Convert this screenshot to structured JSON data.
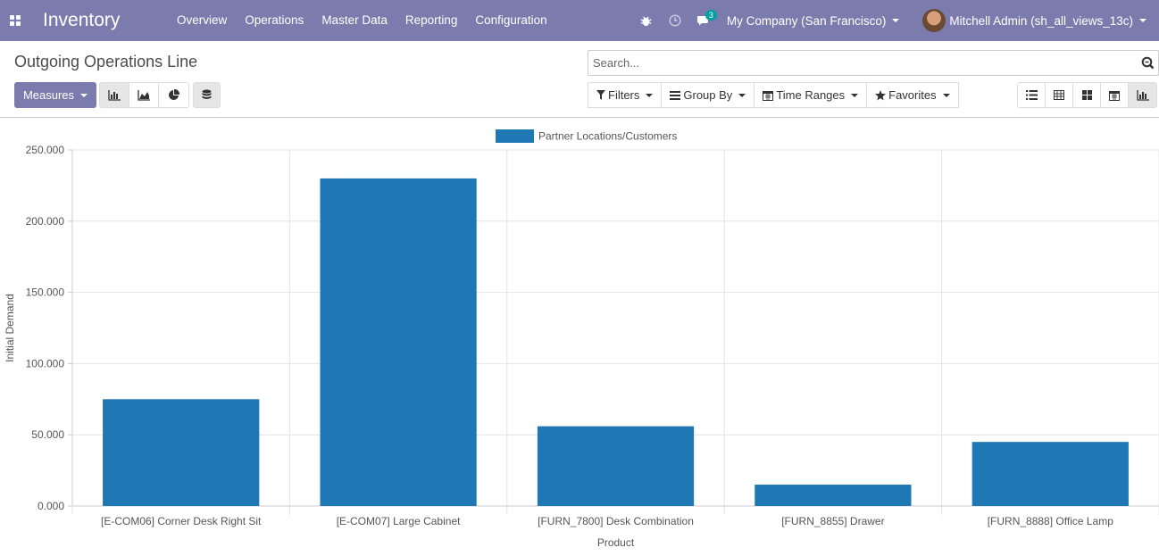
{
  "navbar": {
    "app_title": "Inventory",
    "menu": [
      "Overview",
      "Operations",
      "Master Data",
      "Reporting",
      "Configuration"
    ],
    "messages_badge": "3",
    "company": "My Company (San Francisco)",
    "user": "Mitchell Admin (sh_all_views_13c)"
  },
  "control_panel": {
    "title": "Outgoing Operations Line",
    "search_placeholder": "Search...",
    "measures_label": "Measures",
    "filters_label": "Filters",
    "group_by_label": "Group By",
    "time_ranges_label": "Time Ranges",
    "favorites_label": "Favorites"
  },
  "colors": {
    "navbar": "#7c7bad",
    "bar": "#1f77b4"
  },
  "chart_data": {
    "type": "bar",
    "categories": [
      "[E-COM06] Corner Desk Right Sit",
      "[E-COM07] Large Cabinet",
      "[FURN_7800] Desk Combination",
      "[FURN_8855] Drawer",
      "[FURN_8888] Office Lamp"
    ],
    "series": [
      {
        "name": "Partner Locations/Customers",
        "values": [
          75,
          230,
          56,
          15,
          45
        ]
      }
    ],
    "xlabel": "Product",
    "ylabel": "Initial Demand",
    "ylim": [
      0,
      250
    ],
    "yticks": [
      "0.000",
      "50.000",
      "100.000",
      "150.000",
      "200.000",
      "250.000"
    ],
    "grid": true,
    "legend": "top-center"
  }
}
